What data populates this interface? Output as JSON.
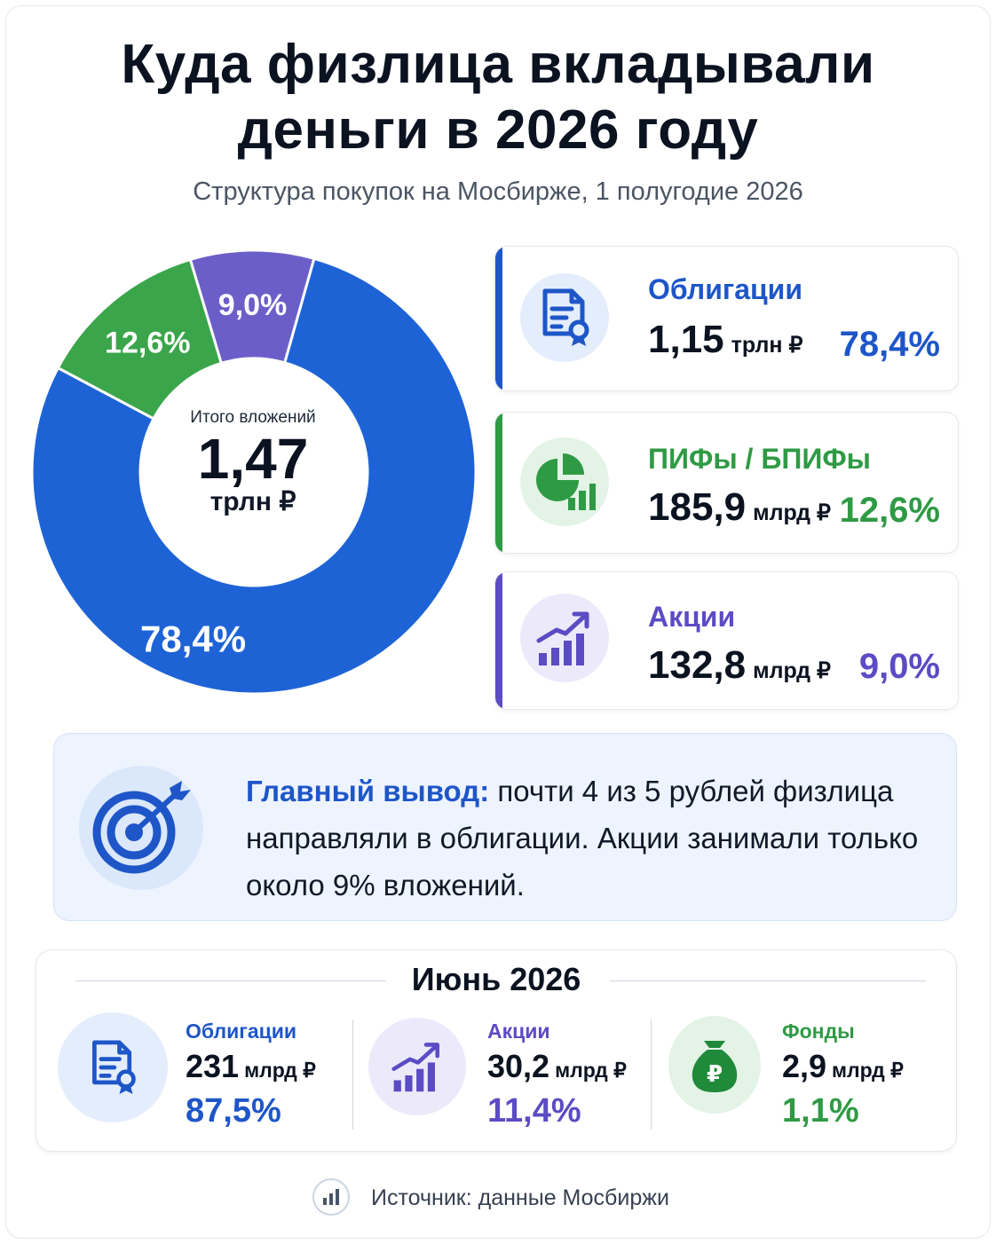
{
  "title_line1": "Куда физлица вкладывали",
  "title_line2": "деньги в 2026 году",
  "subtitle": "Структура покупок на Мосбирже, 1 полугодие 2026",
  "center": {
    "label": "Итого вложений",
    "value": "1,47",
    "unit": "трлн ₽"
  },
  "colors": {
    "bonds": "#1e63d6",
    "funds": "#3aa54a",
    "stocks": "#6c5ec9",
    "text_dark": "#0b1220"
  },
  "chart_data": {
    "type": "pie",
    "title": "Куда физлица вкладывали деньги в 2026 году",
    "subtitle": "Структура покупок на Мосбирже, 1 полугодие 2026",
    "categories": [
      "Облигации",
      "ПИФы / БПИФы",
      "Акции"
    ],
    "values": [
      78.4,
      12.6,
      9.0
    ],
    "labels": [
      "78,4%",
      "12,6%",
      "9,0%"
    ],
    "amounts": [
      "1,15 трлн ₽",
      "185,9 млрд ₽",
      "132,8 млрд ₽"
    ],
    "colors": [
      "#1e63d6",
      "#3aa54a",
      "#6c5ec9"
    ],
    "total": "1,47 трлн ₽"
  },
  "cards": [
    {
      "name": "Облигации",
      "value": "1,15",
      "unit": "трлн ₽",
      "pct": "78,4%",
      "icon": "document-certificate-icon",
      "color": "#1e56c8"
    },
    {
      "name": "ПИФы / БПИФы",
      "value": "185,9",
      "unit": "млрд ₽",
      "pct": "12,6%",
      "icon": "pie-chart-icon",
      "color": "#2f9a44"
    },
    {
      "name": "Акции",
      "value": "132,8",
      "unit": "млрд ₽",
      "pct": "9,0%",
      "icon": "growth-chart-icon",
      "color": "#5b4bc4"
    }
  ],
  "conclusion": {
    "highlight": "Главный вывод:",
    "text": " почти 4 из 5 рублей физлица направляли в облигации. Акции занимали только около 9% вложений.",
    "icon": "target-icon"
  },
  "june": {
    "title": "Июнь 2026",
    "items": [
      {
        "name": "Облигации",
        "value": "231",
        "unit": "млрд ₽",
        "pct": "87,5%",
        "icon": "document-certificate-icon"
      },
      {
        "name": "Акции",
        "value": "30,2",
        "unit": "млрд ₽",
        "pct": "11,4%",
        "icon": "growth-chart-icon"
      },
      {
        "name": "Фонды",
        "value": "2,9",
        "unit": "млрд ₽",
        "pct": "1,1%",
        "icon": "money-bag-icon"
      }
    ]
  },
  "source": {
    "text": "Источник: данные Мосбиржи",
    "icon": "bar-chart-icon"
  }
}
